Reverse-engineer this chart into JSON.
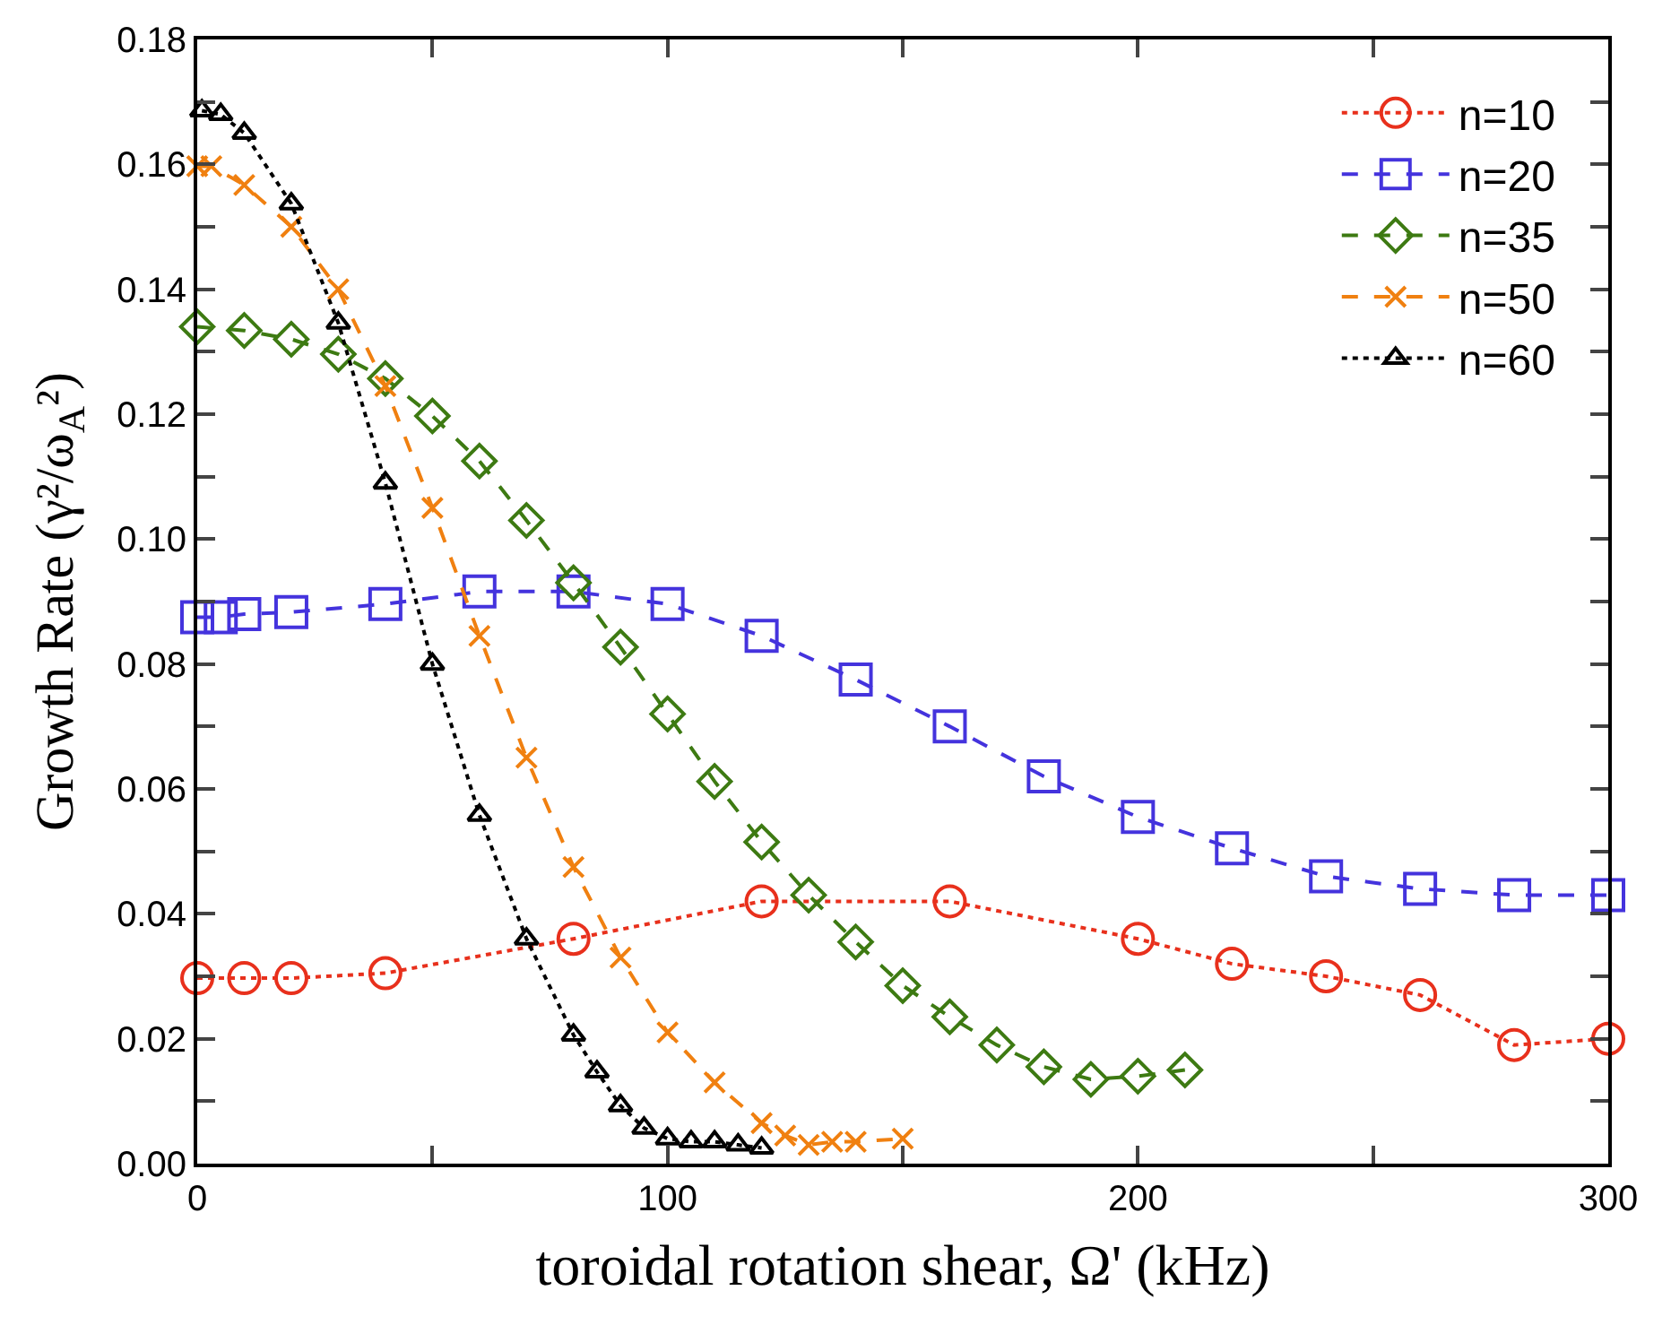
{
  "chart_data": {
    "type": "line",
    "xlabel": "toroidal rotation shear, Ω' (kHz)",
    "ylabel": "Growth Rate (γ²/ω$_{A}$²)",
    "xlim": [
      0,
      300
    ],
    "ylim": [
      0,
      0.18
    ],
    "xticks": [
      0,
      {
        "value": 50,
        "label": null
      },
      100,
      {
        "value": 150,
        "label": null
      },
      200,
      {
        "value": 250,
        "label": null
      },
      300
    ],
    "yticks": [
      {
        "value": 0,
        "label": "0.00"
      },
      {
        "value": 0.01,
        "label": null
      },
      {
        "value": 0.02,
        "label": "0.02"
      },
      {
        "value": 0.03,
        "label": null
      },
      {
        "value": 0.04,
        "label": "0.04"
      },
      {
        "value": 0.05,
        "label": null
      },
      {
        "value": 0.06,
        "label": "0.06"
      },
      {
        "value": 0.07,
        "label": null
      },
      {
        "value": 0.08,
        "label": "0.08"
      },
      {
        "value": 0.09,
        "label": null
      },
      {
        "value": 0.1,
        "label": "0.10"
      },
      {
        "value": 0.11,
        "label": null
      },
      {
        "value": 0.12,
        "label": "0.12"
      },
      {
        "value": 0.13,
        "label": null
      },
      {
        "value": 0.14,
        "label": "0.14"
      },
      {
        "value": 0.15,
        "label": null
      },
      {
        "value": 0.16,
        "label": "0.16"
      },
      {
        "value": 0.17,
        "label": null
      },
      {
        "value": 0.18,
        "label": "0.18"
      }
    ],
    "legend": "top right",
    "series": [
      {
        "name": "n=10",
        "color": "#e8301c",
        "marker": "circle",
        "line_style": "dotted",
        "x": [
          0,
          10,
          20,
          40,
          80,
          120,
          160,
          200,
          220,
          240,
          260,
          280,
          300
        ],
        "values": [
          0.0297,
          0.0297,
          0.0297,
          0.0305,
          0.036,
          0.042,
          0.042,
          0.036,
          0.032,
          0.03,
          0.027,
          0.019,
          0.02
        ]
      },
      {
        "name": "n=20",
        "color": "#4433dd",
        "marker": "square",
        "line_style": "dashed",
        "x": [
          0,
          5,
          10,
          20,
          40,
          60,
          80,
          100,
          120,
          140,
          160,
          180,
          200,
          220,
          240,
          260,
          280,
          300
        ],
        "values": [
          0.0875,
          0.0875,
          0.088,
          0.0883,
          0.0896,
          0.0916,
          0.0916,
          0.0896,
          0.0845,
          0.0775,
          0.07,
          0.062,
          0.0555,
          0.0505,
          0.046,
          0.044,
          0.043,
          0.043
        ]
      },
      {
        "name": "n=35",
        "color": "#3d7a12",
        "marker": "diamond",
        "line_style": "dashed",
        "x": [
          0,
          10,
          20,
          30,
          40,
          50,
          60,
          70,
          80,
          90,
          100,
          110,
          120,
          130,
          140,
          150,
          160,
          170,
          180,
          190,
          200,
          210
        ],
        "values": [
          0.134,
          0.1334,
          0.132,
          0.1296,
          0.1257,
          0.1197,
          0.1125,
          0.103,
          0.093,
          0.0827,
          0.072,
          0.0612,
          0.0515,
          0.043,
          0.0355,
          0.0285,
          0.0235,
          0.019,
          0.0155,
          0.0135,
          0.014,
          0.015
        ]
      },
      {
        "name": "n=50",
        "color": "#f08010",
        "marker": "cross",
        "line_style": "dashed",
        "x": [
          0,
          3,
          10,
          20,
          30,
          40,
          50,
          60,
          70,
          80,
          90,
          100,
          110,
          120,
          125,
          130,
          135,
          140,
          150
        ],
        "values": [
          0.1597,
          0.1597,
          0.1567,
          0.15,
          0.14,
          0.1245,
          0.105,
          0.0845,
          0.065,
          0.0475,
          0.033,
          0.021,
          0.013,
          0.0065,
          0.0045,
          0.003,
          0.0035,
          0.0035,
          0.004
        ]
      },
      {
        "name": "n=60",
        "color": "#000000",
        "marker": "triangle",
        "line_style": "dotted",
        "x": [
          1,
          5,
          10,
          20,
          30,
          40,
          50,
          60,
          70,
          80,
          85,
          90,
          95,
          100,
          105,
          110,
          115,
          120
        ],
        "values": [
          0.1686,
          0.168,
          0.165,
          0.1537,
          0.1346,
          0.109,
          0.08,
          0.0558,
          0.036,
          0.0206,
          0.0147,
          0.0093,
          0.0057,
          0.004,
          0.0035,
          0.0035,
          0.003,
          0.0025
        ]
      }
    ]
  }
}
